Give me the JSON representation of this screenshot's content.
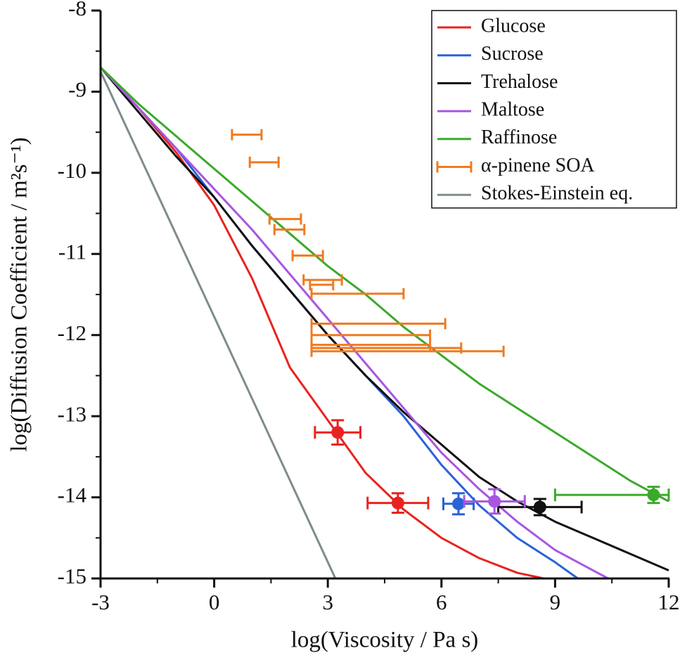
{
  "chart_data": {
    "type": "line",
    "xlabel": "log(Viscosity / Pa s)",
    "ylabel": "log(Diffusion Coefficient / m²s⁻¹)",
    "xlim": [
      -3,
      12
    ],
    "ylim": [
      -15,
      -8
    ],
    "xticks": [
      -3,
      0,
      3,
      6,
      9,
      12
    ],
    "yticks": [
      -8,
      -9,
      -10,
      -11,
      -12,
      -13,
      -14,
      -15
    ],
    "xminorticks": [
      -1.5,
      1.5,
      4.5,
      7.5,
      10.5
    ],
    "yminorticks": [
      -8.5,
      -9.5,
      -10.5,
      -11.5,
      -12.5,
      -13.5,
      -14.5
    ],
    "legend": "upper right",
    "series": [
      {
        "name": "Glucose",
        "color": "#e8231f",
        "x": [
          -3,
          -2,
          -1,
          0,
          1,
          2,
          3,
          4,
          5,
          6,
          7,
          8,
          8.7
        ],
        "y": [
          -8.7,
          -9.2,
          -9.75,
          -10.4,
          -11.3,
          -12.4,
          -13.05,
          -13.7,
          -14.15,
          -14.5,
          -14.75,
          -14.93,
          -15
        ],
        "points": [
          {
            "x": 3.26,
            "y": -13.2,
            "xerr": [
              0.6,
              0.6
            ],
            "yerr": 0.15
          },
          {
            "x": 4.85,
            "y": -14.07,
            "xerr": [
              0.8,
              0.8
            ],
            "yerr": 0.12
          }
        ]
      },
      {
        "name": "Sucrose",
        "color": "#2a62d8",
        "x": [
          -3,
          -2,
          -1,
          0,
          1,
          2,
          3,
          4,
          5,
          6,
          7,
          8,
          9,
          9.6
        ],
        "y": [
          -8.7,
          -9.2,
          -9.7,
          -10.3,
          -10.9,
          -11.45,
          -12.0,
          -12.5,
          -13.0,
          -13.6,
          -14.1,
          -14.5,
          -14.8,
          -15
        ],
        "points": [
          {
            "x": 6.45,
            "y": -14.08,
            "xerr": [
              0.4,
              0.4
            ],
            "yerr": 0.13
          }
        ]
      },
      {
        "name": "Trehalose",
        "color": "#111111",
        "x": [
          -3,
          -2,
          -1,
          0,
          1,
          2,
          3,
          4,
          5,
          6,
          7,
          8,
          9,
          10,
          11,
          12
        ],
        "y": [
          -8.7,
          -9.25,
          -9.8,
          -10.3,
          -10.9,
          -11.45,
          -12.0,
          -12.5,
          -12.95,
          -13.35,
          -13.75,
          -14.05,
          -14.3,
          -14.5,
          -14.7,
          -14.9
        ],
        "points": [
          {
            "x": 8.6,
            "y": -14.12,
            "xerr": [
              1.1,
              1.1
            ],
            "yerr": 0.1
          }
        ]
      },
      {
        "name": "Maltose",
        "color": "#a856e0",
        "x": [
          -3,
          -2,
          -1,
          0,
          1,
          2,
          3,
          4,
          5,
          6,
          7,
          8,
          9,
          10,
          10.4
        ],
        "y": [
          -8.7,
          -9.2,
          -9.7,
          -10.2,
          -10.7,
          -11.25,
          -11.8,
          -12.35,
          -12.9,
          -13.45,
          -13.9,
          -14.3,
          -14.65,
          -14.9,
          -15
        ],
        "points": [
          {
            "x": 7.4,
            "y": -14.05,
            "xerr": [
              0.8,
              0.8
            ],
            "yerr": 0.15
          }
        ]
      },
      {
        "name": "Raffinose",
        "color": "#3aaa2a",
        "x": [
          -3,
          -2,
          -1,
          0,
          1,
          2,
          3,
          4,
          5,
          6,
          7,
          8,
          9,
          10,
          11,
          12
        ],
        "y": [
          -8.7,
          -9.15,
          -9.55,
          -9.95,
          -10.35,
          -10.75,
          -11.15,
          -11.5,
          -11.9,
          -12.25,
          -12.6,
          -12.9,
          -13.2,
          -13.5,
          -13.8,
          -14.05
        ],
        "points": [
          {
            "x": 11.6,
            "y": -13.97,
            "xerr": [
              2.6,
              0.4
            ],
            "yerr": 0.1
          }
        ]
      },
      {
        "name": "α-pinene SOA",
        "color": "#f07a20",
        "y": [
          -9.53,
          -9.87,
          -10.57,
          -10.7,
          -11.02,
          -11.32,
          -11.38,
          -11.49,
          -11.86,
          -12.0,
          -12.12,
          -12.16,
          -12.2
        ],
        "x_low": [
          0.47,
          0.94,
          1.46,
          1.59,
          2.07,
          2.36,
          2.53,
          2.57,
          2.57,
          2.57,
          2.57,
          2.57,
          2.57
        ],
        "x_high": [
          1.25,
          1.7,
          2.29,
          2.38,
          2.87,
          3.37,
          3.14,
          5.0,
          6.1,
          5.7,
          5.7,
          6.52,
          7.64
        ]
      },
      {
        "name": "Stokes-Einstein eq.",
        "color": "#7f8c8d",
        "x": [
          -3,
          3.2
        ],
        "y": [
          -8.75,
          -15
        ]
      }
    ]
  }
}
